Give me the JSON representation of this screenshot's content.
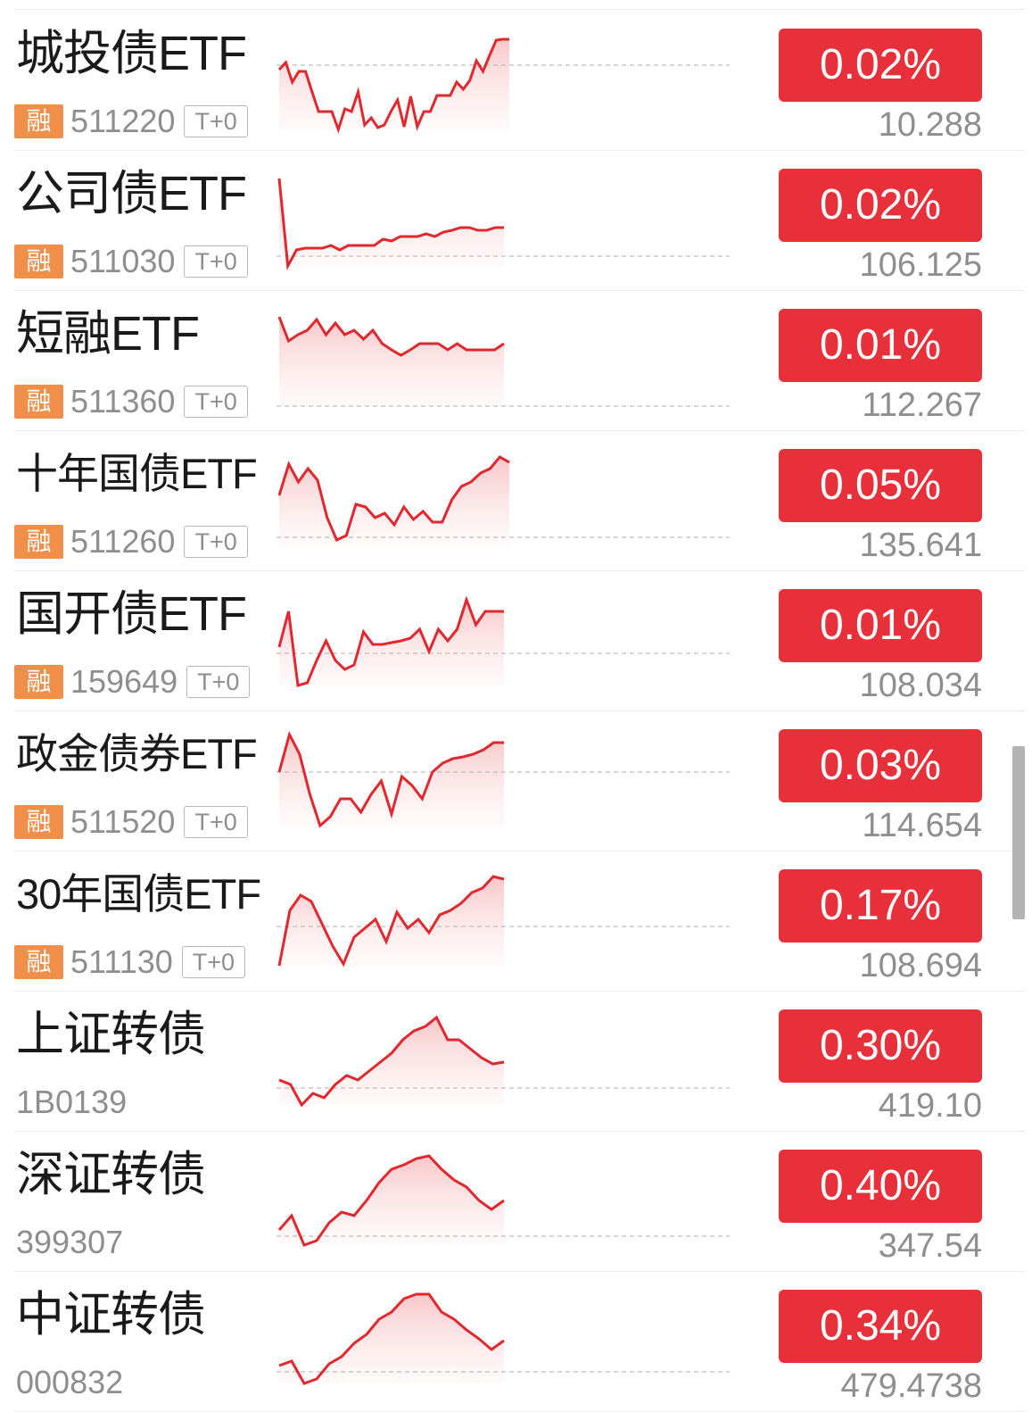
{
  "colors": {
    "up": "#e8303a",
    "line": "#e0282e",
    "badge_rong": "#ef8f4a"
  },
  "rows": [
    {
      "name": "城投债ETF",
      "code": "511220",
      "margin_badge": "融",
      "t0_badge": "T+0",
      "change_pct": "0.02%",
      "price": "10.288",
      "spark": [
        78,
        70,
        92,
        80,
        80,
        103,
        125,
        125,
        125,
        145,
        122,
        125,
        103,
        140,
        132,
        143,
        140,
        125,
        112,
        142,
        108,
        142,
        125,
        125,
        107,
        107,
        107,
        92,
        100,
        90,
        68,
        80,
        62,
        45,
        44,
        44
      ]
    },
    {
      "name": "公司债ETF",
      "code": "511030",
      "margin_badge": "融",
      "t0_badge": "T+0",
      "change_pct": "0.02%",
      "price": "106.125",
      "spark": [
        200,
        298,
        280,
        278,
        278,
        278,
        275,
        280,
        275,
        275,
        275,
        275,
        268,
        270,
        265,
        265,
        265,
        262,
        265,
        260,
        258,
        255,
        255,
        258,
        258,
        255,
        255
      ]
    },
    {
      "name": "短融ETF",
      "code": "511360",
      "margin_badge": "融",
      "t0_badge": "T+0",
      "change_pct": "0.01%",
      "price": "112.267",
      "spark": [
        355,
        382,
        375,
        370,
        358,
        375,
        362,
        375,
        370,
        380,
        370,
        385,
        392,
        398,
        392,
        385,
        385,
        385,
        392,
        385,
        392,
        392,
        392,
        392,
        385
      ]
    },
    {
      "name": "十年国债ETF",
      "code": "511260",
      "margin_badge": "融",
      "t0_badge": "T+0",
      "change_pct": "0.05%",
      "price": "135.641",
      "spark": [
        555,
        520,
        540,
        525,
        538,
        580,
        605,
        600,
        565,
        568,
        580,
        575,
        588,
        568,
        582,
        573,
        585,
        585,
        560,
        545,
        540,
        530,
        525,
        512,
        518
      ]
    },
    {
      "name": "国开债ETF",
      "code": "159649",
      "margin_badge": "融",
      "t0_badge": "T+0",
      "change_pct": "0.01%",
      "price": "108.034",
      "spark": [
        725,
        685,
        768,
        765,
        740,
        718,
        740,
        750,
        745,
        708,
        722,
        722,
        720,
        718,
        715,
        705,
        730,
        705,
        718,
        705,
        672,
        700,
        685,
        685,
        685
      ]
    },
    {
      "name": "政金债券ETF",
      "code": "511520",
      "margin_badge": "融",
      "t0_badge": "T+0",
      "change_pct": "0.03%",
      "price": "114.654",
      "spark": [
        865,
        823,
        845,
        890,
        925,
        915,
        895,
        895,
        910,
        890,
        875,
        912,
        870,
        880,
        895,
        865,
        855,
        850,
        848,
        845,
        840,
        832,
        832
      ]
    },
    {
      "name": "30年国债ETF",
      "code": "511130",
      "margin_badge": "融",
      "t0_badge": "T+0",
      "change_pct": "0.17%",
      "price": "108.694",
      "spark": [
        1082,
        1020,
        1003,
        1010,
        1035,
        1060,
        1080,
        1050,
        1040,
        1030,
        1055,
        1022,
        1040,
        1030,
        1045,
        1025,
        1020,
        1012,
        1000,
        995,
        982,
        985
      ]
    },
    {
      "name": "上证转债",
      "code": "1B0139",
      "change_pct": "0.30%",
      "price": "419.10",
      "spark": [
        1210,
        1215,
        1238,
        1225,
        1230,
        1215,
        1205,
        1210,
        1200,
        1190,
        1180,
        1165,
        1155,
        1150,
        1140,
        1165,
        1165,
        1175,
        1185,
        1192,
        1190
      ]
    },
    {
      "name": "深证转债",
      "code": "399307",
      "change_pct": "0.40%",
      "price": "347.54",
      "spark": [
        1378,
        1362,
        1395,
        1390,
        1370,
        1358,
        1362,
        1345,
        1325,
        1310,
        1305,
        1298,
        1295,
        1310,
        1322,
        1330,
        1345,
        1355,
        1345
      ]
    },
    {
      "name": "中证转债",
      "code": "000832",
      "change_pct": "0.34%",
      "price": "479.4738",
      "spark": [
        1530,
        1525,
        1550,
        1545,
        1528,
        1520,
        1505,
        1495,
        1478,
        1470,
        1455,
        1450,
        1450,
        1470,
        1478,
        1490,
        1500,
        1512,
        1502
      ]
    }
  ]
}
